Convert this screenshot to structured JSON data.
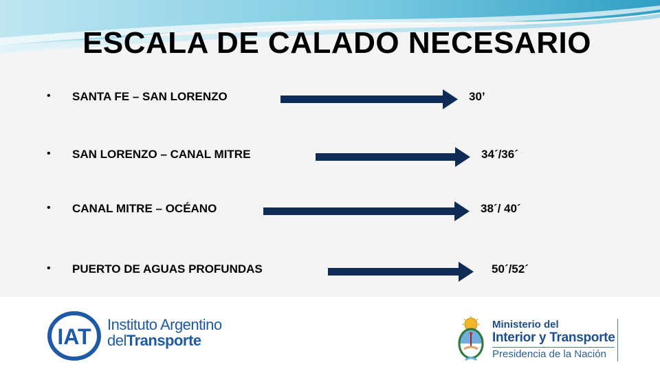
{
  "slide": {
    "title": "ESCALA DE CALADO NECESARIO"
  },
  "routes": [
    {
      "bullet": "•",
      "name": "SANTA FE – SAN LORENZO",
      "value": "30’"
    },
    {
      "bullet": "•",
      "name": "SAN LORENZO – CANAL MITRE",
      "value": "34´/36´"
    },
    {
      "bullet": "•",
      "name": "CANAL MITRE – OCÉANO",
      "value": "38´/ 40´"
    },
    {
      "bullet": "•",
      "name": "PUERTO DE AGUAS PROFUNDAS",
      "value": "50´/52´"
    }
  ],
  "footer": {
    "iat": {
      "logo_text": "IAT",
      "line1": "Instituto Argentino",
      "line2_prefix": "del",
      "line2_bold": "Transporte"
    },
    "ministry": {
      "line1": "Ministerio del",
      "line2": "Interior y Transporte",
      "line3": "Presidencia de la Nación"
    }
  },
  "colors": {
    "arrow": "#0d2b55",
    "iat_blue": "#1f5aa6",
    "ministry_blue": "#1b4f8f",
    "wave_light": "#a9dcea",
    "wave_dark": "#3fa3c4"
  }
}
